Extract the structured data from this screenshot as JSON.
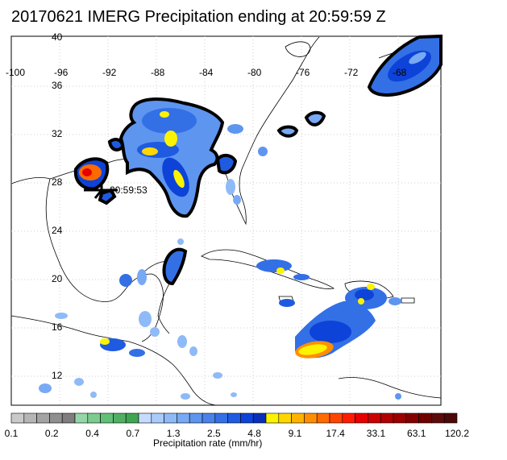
{
  "title": "20170621 IMERG Precipitation ending at 20:59:59 Z",
  "map": {
    "lon_labels": [
      "-100",
      "-96",
      "-92",
      "-88",
      "-84",
      "-80",
      "-76",
      "-72",
      "-68"
    ],
    "lat_labels": [
      "40",
      "36",
      "32",
      "28",
      "24",
      "20",
      "16",
      "12"
    ],
    "storm_time_label": "20:59:53"
  },
  "colorbar": {
    "title": "Precipitation rate (mm/hr)",
    "tick_labels": [
      "0.1",
      "0.2",
      "0.4",
      "0.7",
      "1.3",
      "2.5",
      "4.8",
      "9.1",
      "17.4",
      "33.1",
      "63.1",
      "120.2"
    ],
    "colors": [
      "#c9c9c9",
      "#b5b5b5",
      "#a3a3a3",
      "#8f8f8f",
      "#7e7e7e",
      "#95d6a8",
      "#7ccb8f",
      "#62bf77",
      "#4fb064",
      "#3ea653",
      "#c4dcff",
      "#a9cbfc",
      "#8fbaf8",
      "#78a9f4",
      "#5e95ef",
      "#4a82ea",
      "#3370e6",
      "#1f5be0",
      "#0d43d8",
      "#0a2fb8",
      "#fbf300",
      "#ffd700",
      "#ffb300",
      "#ff8f00",
      "#ff6a00",
      "#ff4400",
      "#ff1c00",
      "#e60000",
      "#cc0000",
      "#b00000",
      "#9a0000",
      "#840000",
      "#6e0000",
      "#5c0a0a",
      "#4a0808"
    ]
  }
}
